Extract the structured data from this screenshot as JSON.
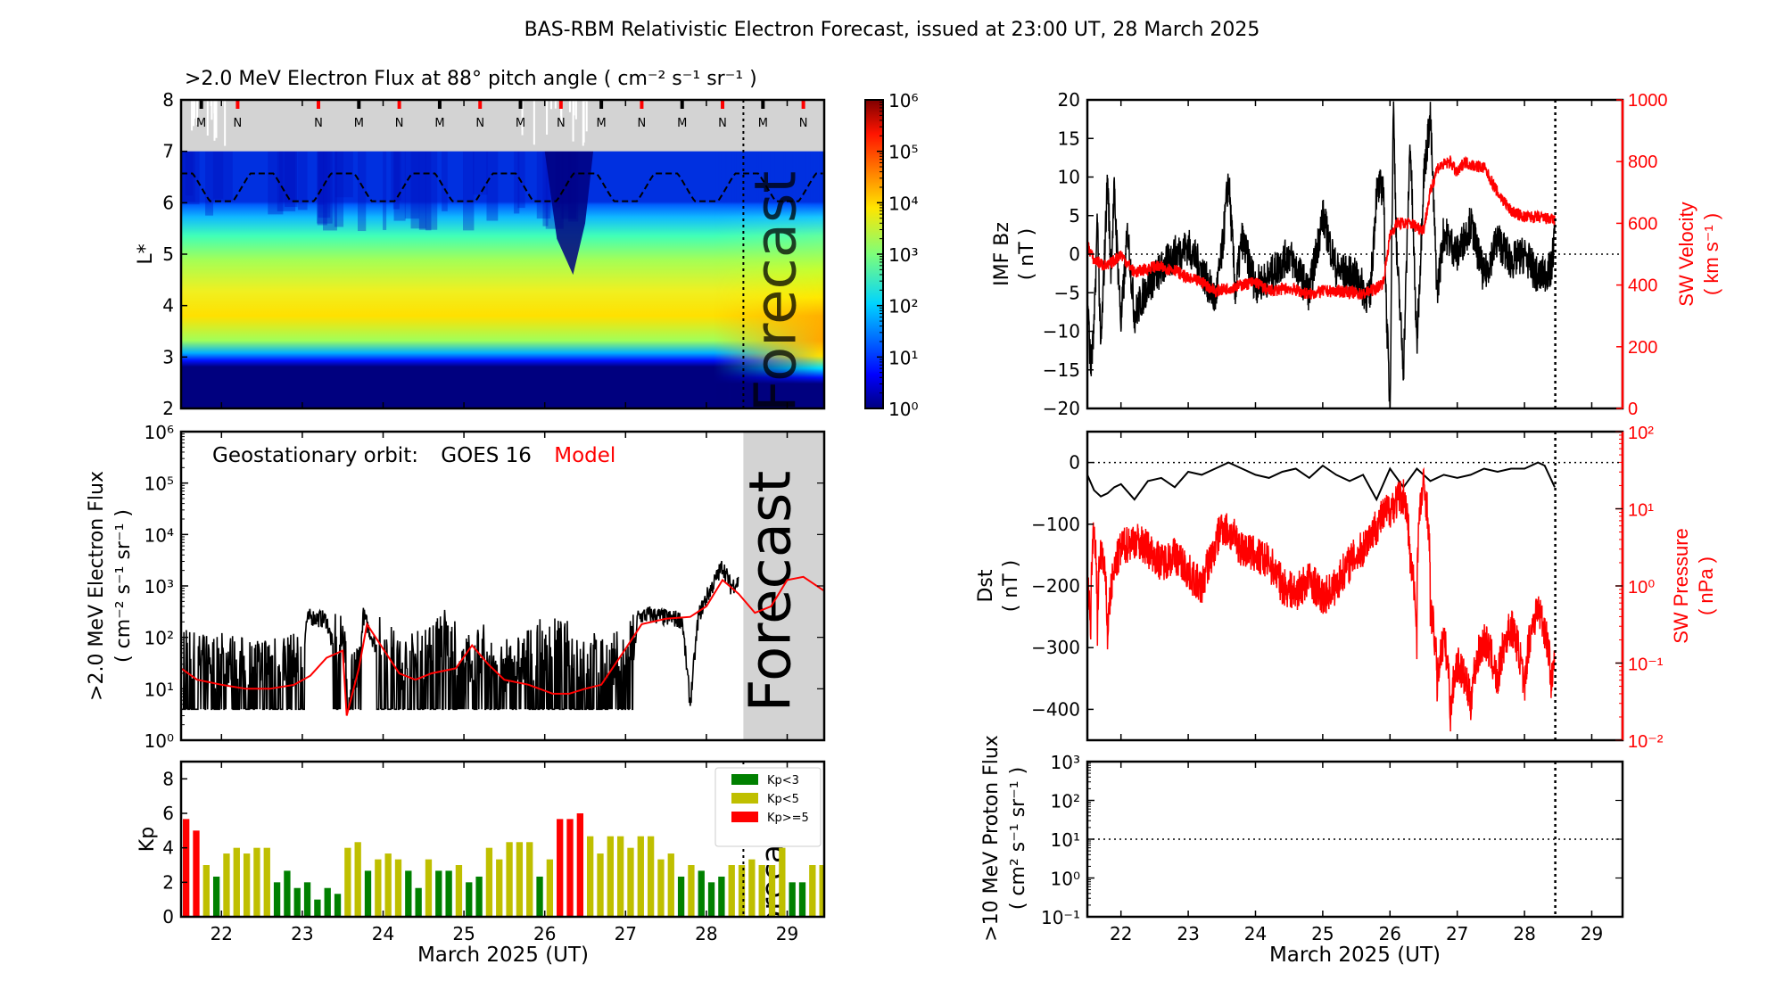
{
  "figure_title": "BAS-RBM Relativistic Electron Forecast, issued at 23:00 UT, 28 March 2025",
  "colors": {
    "kp_low": "#008000",
    "kp_mid": "#bfbf00",
    "kp_high": "#ff0000",
    "forecast_shade": "#d3d3d3",
    "model": "#ff0000",
    "obs": "#000000"
  },
  "chart_data": [
    {
      "id": "lstar_flux",
      "type": "heatmap",
      "title": ">2.0 MeV Electron Flux at 88° pitch angle ( cm⁻² s⁻¹ sr⁻¹ )",
      "ylabel": "L*",
      "xlim": [
        21.5,
        29.458
      ],
      "ylim": [
        2,
        8
      ],
      "yticks": [
        "2",
        "3",
        "4",
        "5",
        "6",
        "7",
        "8"
      ],
      "colorbar": {
        "scale": "log",
        "range": [
          1,
          1000000
        ],
        "ticks": [
          "10⁰",
          "10¹",
          "10²",
          "10³",
          "10⁴",
          "10⁵",
          "10⁶"
        ]
      },
      "forecast_label": "Forecast",
      "forecast_start": 28.458,
      "satellite_markers": [
        {
          "x": 21.75,
          "label": "M",
          "color": "#000000"
        },
        {
          "x": 22.2,
          "label": "N",
          "color": "#ff0000"
        },
        {
          "x": 23.2,
          "label": "N",
          "color": "#ff0000"
        },
        {
          "x": 23.7,
          "label": "M",
          "color": "#000000"
        },
        {
          "x": 24.2,
          "label": "N",
          "color": "#ff0000"
        },
        {
          "x": 24.7,
          "label": "M",
          "color": "#000000"
        },
        {
          "x": 25.2,
          "label": "N",
          "color": "#ff0000"
        },
        {
          "x": 25.7,
          "label": "M",
          "color": "#000000"
        },
        {
          "x": 26.2,
          "label": "N",
          "color": "#ff0000"
        },
        {
          "x": 26.7,
          "label": "M",
          "color": "#000000"
        },
        {
          "x": 27.2,
          "label": "N",
          "color": "#ff0000"
        },
        {
          "x": 27.7,
          "label": "M",
          "color": "#000000"
        },
        {
          "x": 28.2,
          "label": "N",
          "color": "#ff0000"
        },
        {
          "x": 28.7,
          "label": "M",
          "color": "#000000"
        },
        {
          "x": 29.2,
          "label": "N",
          "color": "#ff0000"
        }
      ],
      "no_data_region": {
        "Lmin": 7,
        "Lmax": 8
      },
      "magnetopause_L": {
        "mean": 6.3,
        "amplitude": 0.27,
        "period_days": 1
      }
    },
    {
      "id": "geo_flux",
      "type": "line",
      "ylabel": ">2.0 MeV Electron Flux ( cm⁻² s⁻¹ sr⁻¹ )",
      "ylabel_line1": ">2.0 MeV Electron Flux",
      "ylabel_line2": "( cm⁻² s⁻¹ sr⁻¹ )",
      "yscale": "log",
      "ylim": [
        1,
        1000000
      ],
      "yticks": [
        "10⁰",
        "10¹",
        "10²",
        "10³",
        "10⁴",
        "10⁵",
        "10⁶"
      ],
      "xlim": [
        21.5,
        29.458
      ],
      "legend_prefix": "Geostationary orbit:",
      "forecast_label": "Forecast",
      "forecast_start": 28.458,
      "series": [
        {
          "name": "GOES 16",
          "color": "#000000",
          "x": [
            21.5,
            21.75,
            22.0,
            22.25,
            22.5,
            22.75,
            23.0,
            23.05,
            23.1,
            23.3,
            23.45,
            23.5,
            23.55,
            23.7,
            23.75,
            24.0,
            24.25,
            24.5,
            24.75,
            25.0,
            25.25,
            25.5,
            25.75,
            26.0,
            26.25,
            26.5,
            26.75,
            27.0,
            27.1,
            27.15,
            27.3,
            27.5,
            27.7,
            27.8,
            27.9,
            28.0,
            28.1,
            28.2,
            28.3,
            28.4
          ],
          "y": [
            20,
            15,
            18,
            14,
            16,
            18,
            15,
            200,
            250,
            220,
            20,
            150,
            8,
            10,
            280,
            30,
            15,
            20,
            60,
            15,
            25,
            12,
            18,
            35,
            30,
            20,
            15,
            20,
            40,
            250,
            280,
            240,
            220,
            5,
            250,
            600,
            1200,
            2500,
            1000,
            1200
          ]
        },
        {
          "name": "Model",
          "color": "#ff0000",
          "x": [
            21.5,
            21.7,
            22.0,
            22.3,
            22.6,
            22.9,
            23.1,
            23.3,
            23.5,
            23.55,
            23.7,
            23.8,
            24.0,
            24.2,
            24.4,
            24.6,
            24.9,
            25.1,
            25.3,
            25.5,
            25.8,
            26.1,
            26.3,
            26.5,
            26.7,
            27.0,
            27.2,
            27.5,
            27.8,
            28.0,
            28.2,
            28.4,
            28.6,
            28.8,
            29.0,
            29.2,
            29.458
          ],
          "y": [
            25,
            15,
            12,
            10,
            10,
            12,
            18,
            40,
            55,
            3,
            25,
            180,
            60,
            20,
            15,
            20,
            25,
            70,
            30,
            15,
            12,
            8,
            8,
            10,
            12,
            60,
            180,
            230,
            250,
            400,
            1300,
            700,
            300,
            400,
            1300,
            1500,
            800
          ]
        }
      ]
    },
    {
      "id": "kp",
      "type": "bar",
      "ylabel": "Kp",
      "ylim": [
        0,
        9
      ],
      "yticks": [
        "0",
        "2",
        "4",
        "6",
        "8"
      ],
      "xlim": [
        21.5,
        29.458
      ],
      "bin_hours": 3,
      "start_day": 21.5,
      "forecast_start": 28.458,
      "forecast_label": "Forecast",
      "legend": [
        {
          "label": "Kp<3",
          "color": "#008000"
        },
        {
          "label": "Kp<5",
          "color": "#bfbf00"
        },
        {
          "label": "Kp>=5",
          "color": "#ff0000"
        }
      ],
      "values": [
        5.67,
        5.0,
        3.0,
        2.33,
        3.67,
        4.0,
        3.67,
        4.0,
        4.0,
        2.0,
        2.67,
        1.67,
        2.0,
        1.0,
        1.67,
        1.33,
        4.0,
        4.33,
        2.67,
        3.33,
        3.67,
        3.33,
        2.67,
        1.67,
        3.33,
        2.67,
        2.67,
        3.0,
        2.0,
        2.33,
        4.0,
        3.33,
        4.33,
        4.33,
        4.33,
        2.33,
        3.33,
        5.67,
        5.67,
        6.0,
        4.67,
        3.67,
        4.67,
        4.67,
        4.0,
        4.67,
        4.67,
        3.33,
        3.67,
        2.33,
        3.0,
        2.67,
        2.0,
        2.33,
        3.0,
        3.0,
        3.33,
        3.0,
        3.0,
        4.0,
        2.0,
        2.0,
        3.0,
        3.0
      ]
    },
    {
      "id": "imf_vsw",
      "type": "line",
      "ylabel_left": "IMF Bz",
      "ylabel_left_unit": "( nT )",
      "ylabel_right": "SW Velocity",
      "ylabel_right_unit": "( km s⁻¹ )",
      "ylim_left": [
        -20,
        20
      ],
      "ylim_right": [
        0,
        1000
      ],
      "yticks_left": [
        "−20",
        "−15",
        "−10",
        "−5",
        "0",
        "5",
        "10",
        "15",
        "20"
      ],
      "yticks_right": [
        "0",
        "200",
        "400",
        "600",
        "800",
        "1000"
      ],
      "xlim": [
        21.5,
        29.458
      ],
      "forecast_start": 28.458,
      "series": [
        {
          "name": "IMF Bz",
          "axis": "left",
          "color": "#000000",
          "x": [
            21.5,
            21.55,
            21.6,
            21.65,
            21.7,
            21.8,
            21.85,
            21.9,
            22.0,
            22.1,
            22.2,
            22.4,
            22.6,
            22.8,
            23.0,
            23.2,
            23.4,
            23.5,
            23.6,
            23.7,
            23.8,
            24.0,
            24.2,
            24.5,
            24.8,
            25.0,
            25.2,
            25.5,
            25.7,
            25.8,
            25.9,
            25.95,
            26.0,
            26.05,
            26.1,
            26.2,
            26.3,
            26.4,
            26.5,
            26.6,
            26.7,
            26.8,
            27.0,
            27.2,
            27.4,
            27.6,
            27.8,
            28.0,
            28.2,
            28.4,
            28.45
          ],
          "y": [
            -5,
            -15,
            -10,
            5,
            -13,
            10,
            -2,
            8,
            -9,
            3,
            -8,
            -4,
            -2,
            0,
            1,
            -2,
            -6,
            0,
            10,
            -5,
            2,
            -4,
            -3,
            0,
            -5,
            5,
            -2,
            -3,
            -6,
            8,
            9,
            -8,
            -20,
            20,
            0,
            -15,
            15,
            -12,
            10,
            18,
            -5,
            3,
            0,
            4,
            -3,
            2,
            -1,
            0,
            -3,
            -2,
            3
          ]
        },
        {
          "name": "SW Velocity",
          "axis": "right",
          "color": "#ff0000",
          "x": [
            21.5,
            21.6,
            21.8,
            22.0,
            22.2,
            22.5,
            22.8,
            23.0,
            23.2,
            23.4,
            23.6,
            23.8,
            24.0,
            24.2,
            24.5,
            24.8,
            25.0,
            25.3,
            25.6,
            25.8,
            25.9,
            26.0,
            26.1,
            26.3,
            26.5,
            26.6,
            26.7,
            26.9,
            27.0,
            27.1,
            27.2,
            27.4,
            27.6,
            27.8,
            28.0,
            28.2,
            28.45
          ],
          "y": [
            530,
            480,
            460,
            500,
            440,
            460,
            450,
            420,
            410,
            380,
            390,
            400,
            410,
            380,
            390,
            370,
            380,
            380,
            370,
            390,
            410,
            560,
            600,
            600,
            580,
            700,
            780,
            800,
            760,
            800,
            790,
            780,
            700,
            640,
            620,
            620,
            610
          ]
        }
      ]
    },
    {
      "id": "dst_psw",
      "type": "line",
      "ylabel_left": "Dst",
      "ylabel_left_unit": "( nT )",
      "ylabel_right": "SW Pressure",
      "ylabel_right_unit": "( nPa )",
      "ylim_left": [
        -450,
        50
      ],
      "yscale_right": "log",
      "ylim_right": [
        0.01,
        100
      ],
      "yticks_left": [
        "−400",
        "−300",
        "−200",
        "−100",
        "0"
      ],
      "yticks_right": [
        "10⁻²",
        "10⁻¹",
        "10⁰",
        "10¹",
        "10²"
      ],
      "xlim": [
        21.5,
        29.458
      ],
      "forecast_start": 28.458,
      "series": [
        {
          "name": "Dst",
          "axis": "left",
          "color": "#000000",
          "x": [
            21.5,
            21.6,
            21.7,
            21.8,
            21.9,
            22.0,
            22.2,
            22.4,
            22.6,
            22.8,
            23.0,
            23.2,
            23.4,
            23.6,
            23.8,
            24.0,
            24.2,
            24.4,
            24.6,
            24.8,
            25.0,
            25.2,
            25.4,
            25.6,
            25.8,
            26.0,
            26.2,
            26.4,
            26.6,
            26.8,
            27.0,
            27.2,
            27.4,
            27.6,
            27.8,
            28.0,
            28.2,
            28.3,
            28.45
          ],
          "y": [
            -20,
            -45,
            -55,
            -50,
            -40,
            -35,
            -60,
            -30,
            -25,
            -40,
            -15,
            -20,
            -10,
            0,
            -10,
            -20,
            -25,
            -15,
            -10,
            -25,
            -5,
            -20,
            -30,
            -20,
            -60,
            -10,
            -40,
            -10,
            -30,
            -20,
            -25,
            -20,
            -10,
            -15,
            -10,
            -10,
            0,
            -5,
            -40
          ]
        },
        {
          "name": "SW Pressure",
          "axis": "right",
          "color": "#ff0000",
          "x": [
            21.5,
            21.55,
            21.6,
            21.65,
            21.7,
            21.8,
            21.9,
            22.0,
            22.2,
            22.4,
            22.6,
            22.8,
            23.0,
            23.2,
            23.4,
            23.5,
            23.6,
            23.8,
            24.0,
            24.2,
            24.4,
            24.6,
            24.8,
            25.0,
            25.2,
            25.4,
            25.6,
            25.8,
            26.0,
            26.2,
            26.3,
            26.4,
            26.5,
            26.6,
            26.7,
            26.8,
            26.9,
            27.0,
            27.2,
            27.4,
            27.6,
            27.8,
            28.0,
            28.2,
            28.4,
            28.45
          ],
          "y": [
            1.0,
            0.3,
            5,
            0.1,
            3,
            0.2,
            1.5,
            3,
            4,
            3,
            2,
            2.5,
            1.5,
            0.9,
            3,
            6,
            5,
            3,
            2.5,
            2,
            1,
            0.8,
            1.2,
            0.7,
            1.0,
            2.0,
            3,
            6,
            10,
            15,
            2,
            0.2,
            20,
            0.5,
            0.05,
            0.2,
            0.02,
            0.1,
            0.03,
            0.2,
            0.05,
            0.3,
            0.03,
            0.5,
            0.05,
            0.1
          ]
        }
      ]
    },
    {
      "id": "proton_flux",
      "type": "line",
      "ylabel_line1": ">10 MeV Proton Flux",
      "ylabel_line2": "( cm² s⁻¹ sr⁻¹ )",
      "yscale": "log",
      "ylim": [
        0.1,
        1000
      ],
      "yticks": [
        "10⁻¹",
        "10⁰",
        "10¹",
        "10²",
        "10³"
      ],
      "threshold": 10,
      "xlim": [
        21.5,
        29.458
      ],
      "forecast_start": 28.458,
      "series": []
    }
  ],
  "x_axis": {
    "ticks": [
      "22",
      "23",
      "24",
      "25",
      "26",
      "27",
      "28",
      "29"
    ],
    "tick_values": [
      22,
      23,
      24,
      25,
      26,
      27,
      28,
      29
    ],
    "label": "March 2025 (UT)"
  }
}
